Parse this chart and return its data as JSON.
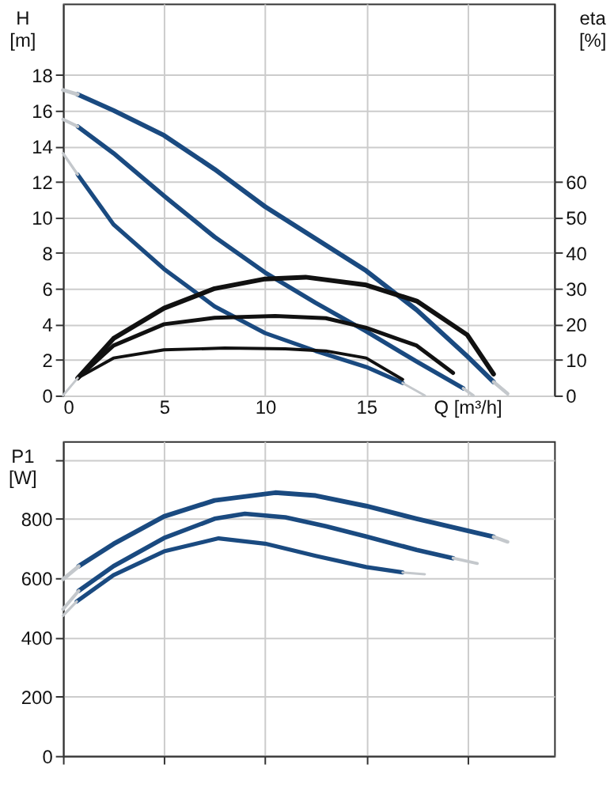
{
  "chart_data": [
    {
      "type": "line",
      "ylabel": "H [m]",
      "y2label": "eta [%]",
      "xlim": [
        0,
        24.3
      ],
      "xticks": [
        0,
        5,
        10,
        15,
        {
          "value": 20,
          "label": "Q [m³/h]"
        }
      ],
      "ylim": [
        0,
        22
      ],
      "yticks": [
        0,
        2,
        4,
        6,
        8,
        10,
        12,
        14,
        16,
        18
      ],
      "y2lim": [
        0,
        110
      ],
      "y2ticks": [
        0,
        10,
        20,
        30,
        40,
        50,
        60
      ],
      "grid": true,
      "legend": false,
      "series": [
        {
          "color": "#1a4a80",
          "x": [
            0.73,
            2.5,
            5,
            7.5,
            10,
            12.5,
            15,
            17.5,
            20,
            21.3
          ],
          "values": [
            16.9,
            16.0,
            14.6,
            12.7,
            10.6,
            8.8,
            7.0,
            4.8,
            2.2,
            0.76
          ]
        },
        {
          "color": "#1a4a80",
          "x": [
            0.73,
            2.5,
            5,
            7.5,
            10,
            12.5,
            15,
            17.5,
            19.8
          ],
          "values": [
            15.1,
            13.6,
            11.2,
            8.9,
            6.9,
            5.2,
            3.6,
            1.9,
            0.4
          ]
        },
        {
          "color": "#1a4a80",
          "x": [
            0.73,
            2.5,
            5,
            7.5,
            10,
            12.5,
            15,
            16.8
          ],
          "values": [
            12.4,
            9.6,
            7.1,
            5.0,
            3.5,
            2.5,
            1.6,
            0.7
          ]
        },
        {
          "color": "#c4c8cc",
          "x": [
            0,
            0.73
          ],
          "values": [
            17.15,
            16.9
          ]
        },
        {
          "color": "#c4c8cc",
          "x": [
            21.3,
            22.0
          ],
          "values": [
            0.76,
            0.1
          ]
        },
        {
          "color": "#c4c8cc",
          "x": [
            0,
            0.73
          ],
          "values": [
            15.5,
            15.1
          ]
        },
        {
          "color": "#c4c8cc",
          "x": [
            19.8,
            20.3
          ],
          "values": [
            0.4,
            0
          ]
        },
        {
          "color": "#c4c8cc",
          "x": [
            0,
            0.73
          ],
          "values": [
            13.6,
            12.4
          ]
        },
        {
          "color": "#c4c8cc",
          "x": [
            16.8,
            17.9
          ],
          "values": [
            0.7,
            0
          ]
        },
        {
          "color": "#111111",
          "axis": "y2",
          "x": [
            0.73,
            2.5,
            5,
            7.5,
            10,
            12,
            15,
            17.5,
            20,
            21.3
          ],
          "values": [
            4.9,
            16,
            24.5,
            30,
            32.7,
            33.2,
            31,
            26.5,
            17,
            6
          ]
        },
        {
          "color": "#111111",
          "axis": "y2",
          "x": [
            0.73,
            2.5,
            5,
            7.5,
            10.5,
            13,
            15,
            17.5,
            19.3
          ],
          "values": [
            4.9,
            14,
            20,
            21.8,
            22.3,
            21.7,
            19,
            14,
            6.3
          ]
        },
        {
          "color": "#111111",
          "axis": "y2",
          "x": [
            0.73,
            2.5,
            5,
            8,
            11,
            13,
            15,
            16.8
          ],
          "values": [
            4.9,
            10.5,
            12.8,
            13.3,
            13.1,
            12.5,
            10.5,
            4.5
          ]
        },
        {
          "color": "#c4c8cc",
          "axis": "y2",
          "x": [
            0,
            0.73
          ],
          "values": [
            0,
            4.9
          ]
        }
      ]
    },
    {
      "type": "line",
      "ylabel": "P1 [W]",
      "xlim": [
        0,
        24.3
      ],
      "xticks": [
        0,
        5,
        10,
        15,
        20
      ],
      "ylim": [
        0,
        1062
      ],
      "yticks": [
        0,
        200,
        400,
        600,
        800,
        {
          "value": 1000,
          "label": null
        }
      ],
      "tick_labels": "y",
      "grid": true,
      "legend": false,
      "series": [
        {
          "color": "#1a4a80",
          "x": [
            0.78,
            2.5,
            5,
            7.5,
            10.5,
            12.5,
            15,
            17.5,
            20,
            21.3
          ],
          "values": [
            640,
            715,
            808,
            862,
            888,
            878,
            843,
            800,
            760,
            739
          ]
        },
        {
          "color": "#1a4a80",
          "x": [
            0.78,
            2.5,
            5,
            7.5,
            9,
            11,
            13,
            15,
            17.5,
            19.3
          ],
          "values": [
            557,
            640,
            735,
            800,
            817,
            805,
            775,
            740,
            695,
            667
          ]
        },
        {
          "color": "#1a4a80",
          "x": [
            0.68,
            2.5,
            5,
            7.7,
            10,
            12.5,
            15,
            16.8
          ],
          "values": [
            521,
            610,
            690,
            734,
            716,
            675,
            637,
            619
          ]
        },
        {
          "color": "#c4c8cc",
          "x": [
            0,
            0.78
          ],
          "values": [
            596,
            640
          ]
        },
        {
          "color": "#c4c8cc",
          "x": [
            21.3,
            22.0
          ],
          "values": [
            739,
            722
          ]
        },
        {
          "color": "#c4c8cc",
          "x": [
            0,
            0.78
          ],
          "values": [
            495,
            557
          ]
        },
        {
          "color": "#c4c8cc",
          "x": [
            19.3,
            20.5
          ],
          "values": [
            667,
            649
          ]
        },
        {
          "color": "#c4c8cc",
          "x": [
            0,
            0.68
          ],
          "values": [
            473,
            521
          ]
        },
        {
          "color": "#c4c8cc",
          "x": [
            16.8,
            17.9
          ],
          "values": [
            619,
            613
          ]
        }
      ]
    }
  ]
}
